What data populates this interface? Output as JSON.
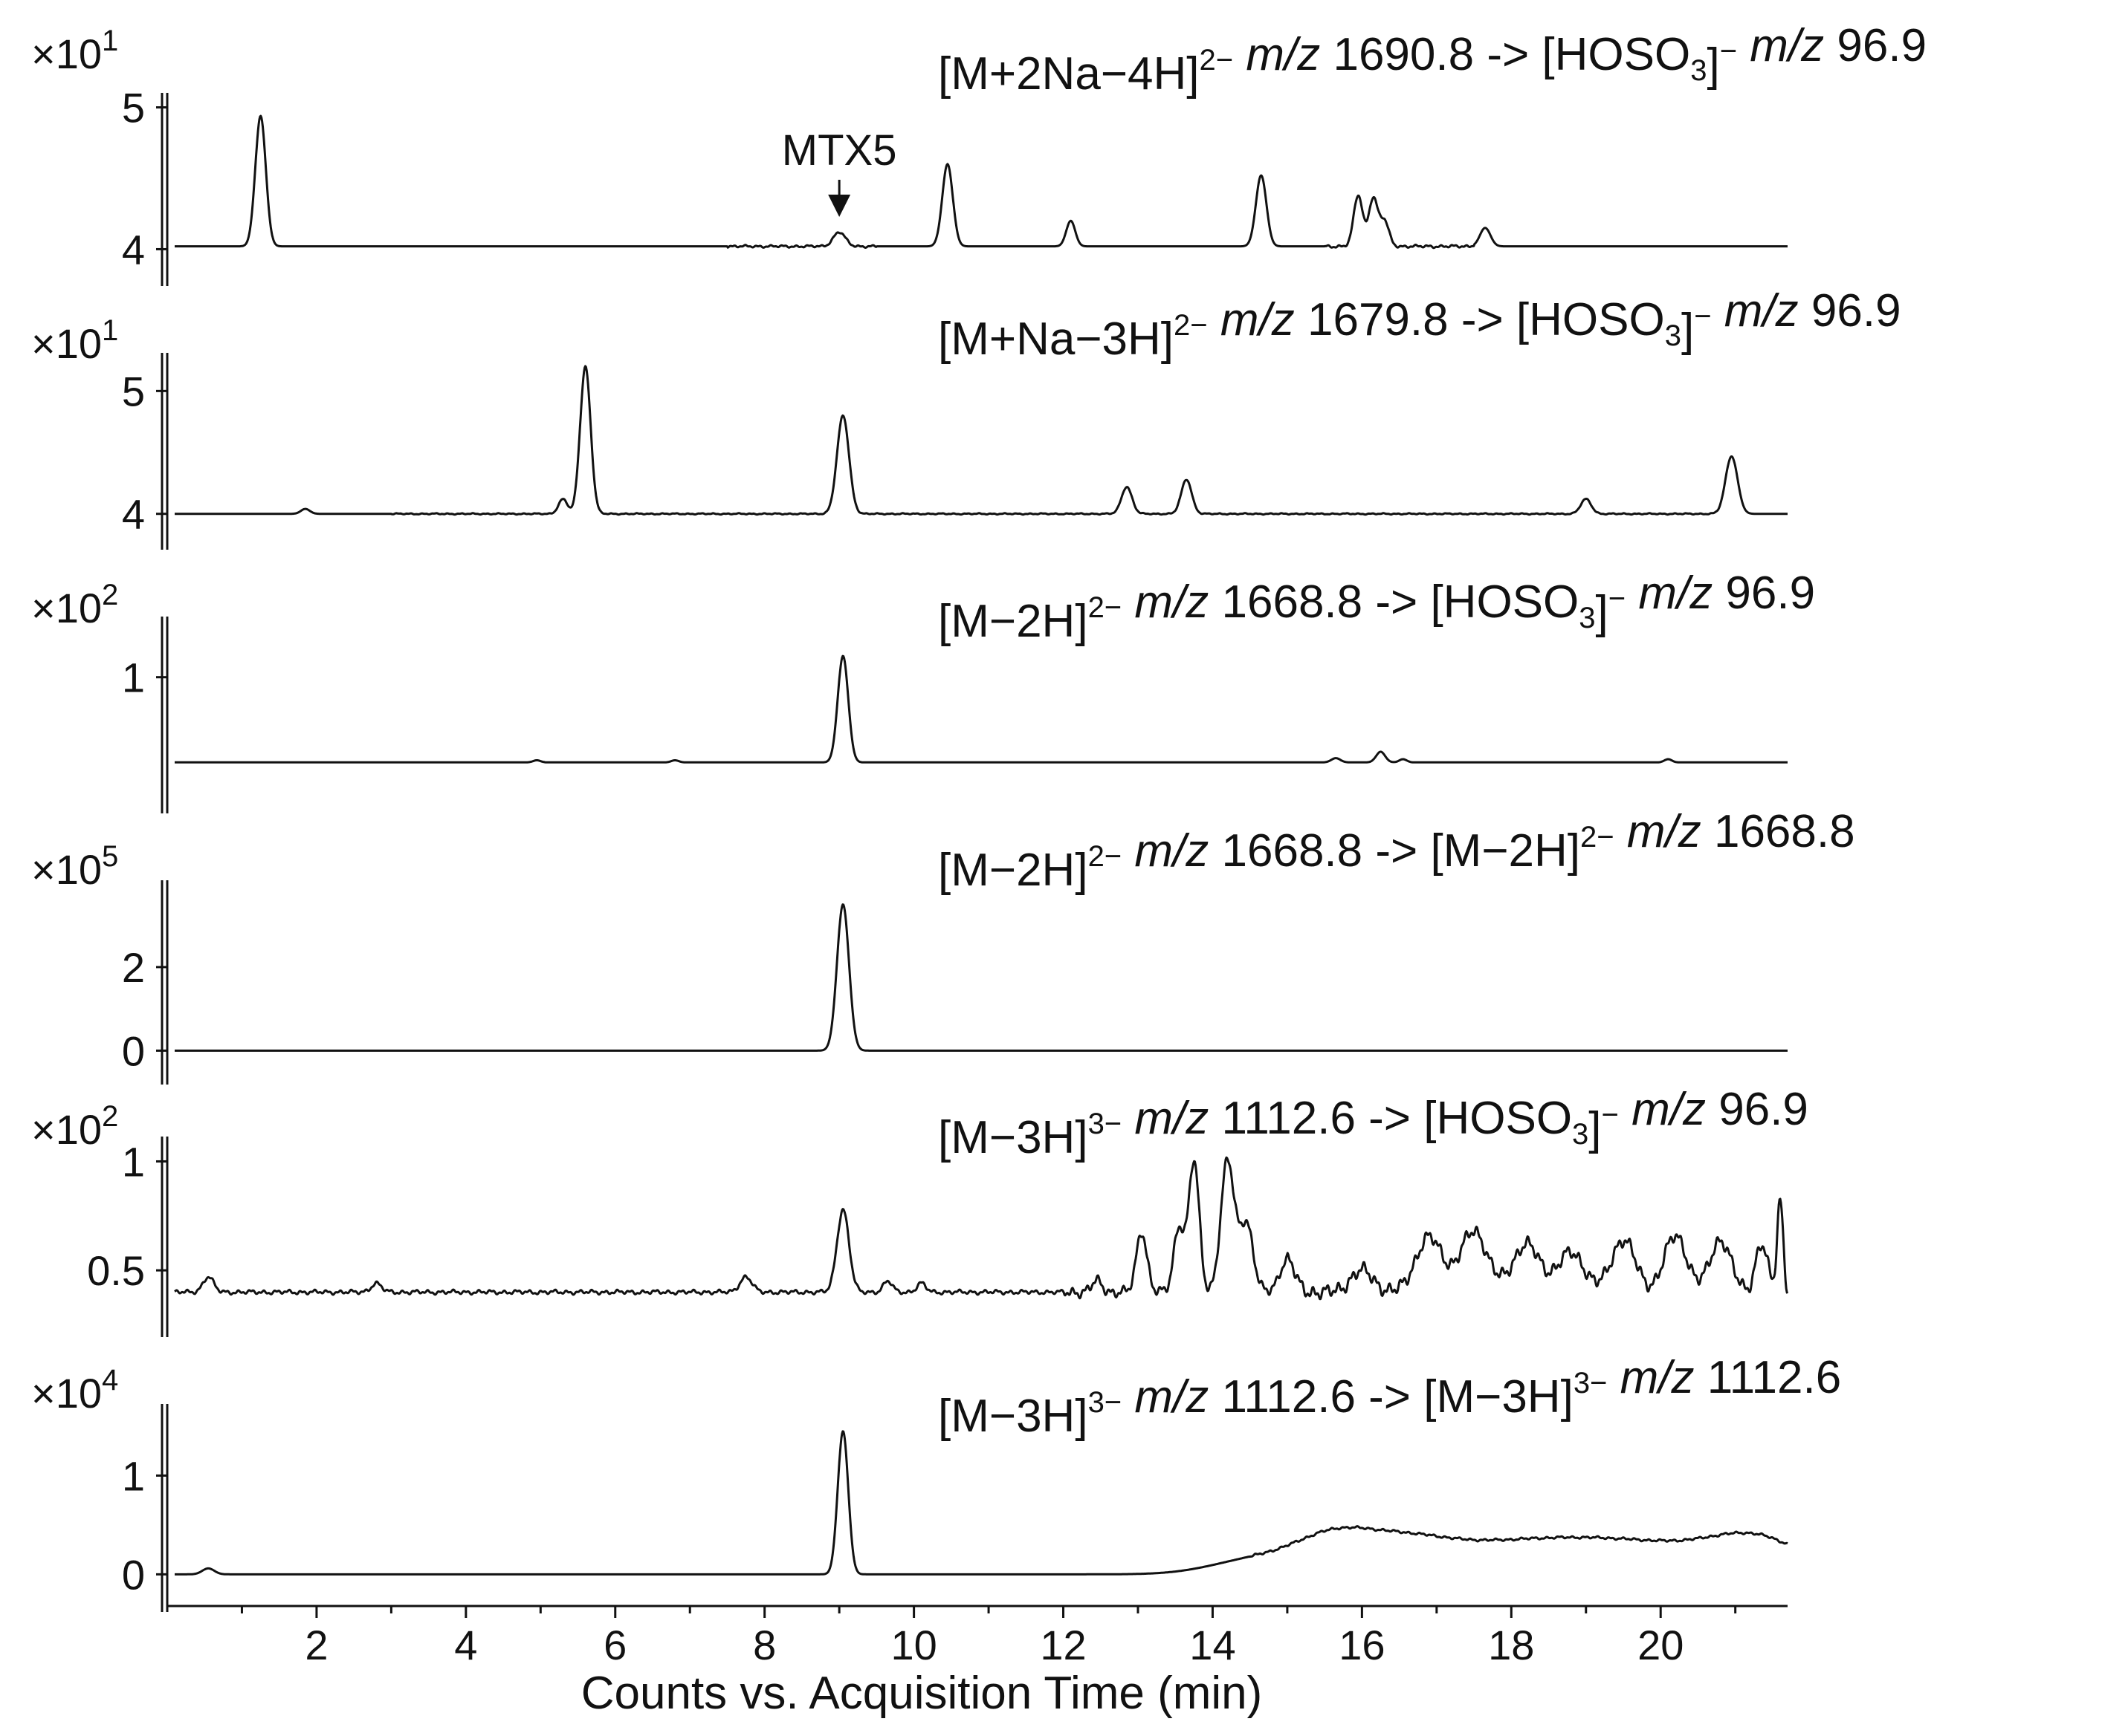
{
  "chart_data": {
    "type": "line",
    "x_axis": {
      "title": "Counts vs. Acquisition Time (min)",
      "range": [
        0,
        21.7
      ],
      "major_ticks": [
        2,
        4,
        6,
        8,
        10,
        12,
        14,
        16,
        18,
        20
      ],
      "minor_ticks": [
        1,
        3,
        5,
        7,
        9,
        11,
        13,
        15,
        17,
        19,
        21
      ]
    },
    "annotation": {
      "label": "MTX5",
      "panel": 0,
      "x": 9.0
    },
    "panels": [
      {
        "scale_prefix": "×10",
        "scale_exp": "1",
        "title_parts": [
          {
            "t": "[M+2Na−4H]"
          },
          {
            "t": "2−",
            "s": "sup"
          },
          {
            "t": " "
          },
          {
            "t": "m/z",
            "s": "it"
          },
          {
            "t": " 1690.8 -> [HOSO"
          },
          {
            "t": "3",
            "s": "sub"
          },
          {
            "t": "]"
          },
          {
            "t": "−",
            "s": "sup"
          },
          {
            "t": " "
          },
          {
            "t": "m/z",
            "s": "it"
          },
          {
            "t": " 96.9"
          }
        ],
        "ylim": [
          3.95,
          5.05
        ],
        "yticks": [
          {
            "v": 4,
            "label": "4"
          },
          {
            "v": 5,
            "label": "5"
          }
        ],
        "baseline": 4.02,
        "wiggle": [
          [
            7.5,
            9.5,
            0.01
          ],
          [
            15.5,
            17.5,
            0.012
          ]
        ],
        "peaks": [
          [
            1.25,
            0.92,
            0.07
          ],
          [
            9.0,
            0.1,
            0.08
          ],
          [
            10.45,
            0.58,
            0.07
          ],
          [
            12.1,
            0.18,
            0.06
          ],
          [
            14.65,
            0.5,
            0.07
          ],
          [
            15.95,
            0.36,
            0.06
          ],
          [
            16.15,
            0.34,
            0.06
          ],
          [
            16.3,
            0.18,
            0.06
          ],
          [
            17.65,
            0.13,
            0.07
          ]
        ]
      },
      {
        "scale_prefix": "×10",
        "scale_exp": "1",
        "title_parts": [
          {
            "t": "[M+Na−3H]"
          },
          {
            "t": "2−",
            "s": "sup"
          },
          {
            "t": " "
          },
          {
            "t": "m/z",
            "s": "it"
          },
          {
            "t": " 1679.8 -> [HOSO"
          },
          {
            "t": "3",
            "s": "sub"
          },
          {
            "t": "]"
          },
          {
            "t": "−",
            "s": "sup"
          },
          {
            "t": " "
          },
          {
            "t": "m/z",
            "s": "it"
          },
          {
            "t": " 96.9"
          }
        ],
        "ylim": [
          3.95,
          5.25
        ],
        "yticks": [
          {
            "v": 4,
            "label": "4"
          },
          {
            "v": 5,
            "label": "5"
          }
        ],
        "baseline": 4.0,
        "wiggle": [
          [
            3,
            21,
            0.006
          ]
        ],
        "peaks": [
          [
            1.85,
            0.04,
            0.06
          ],
          [
            5.3,
            0.12,
            0.06
          ],
          [
            5.6,
            1.2,
            0.07
          ],
          [
            9.05,
            0.8,
            0.08
          ],
          [
            12.85,
            0.22,
            0.07
          ],
          [
            13.65,
            0.28,
            0.07
          ],
          [
            19.0,
            0.12,
            0.07
          ],
          [
            20.95,
            0.47,
            0.08
          ]
        ]
      },
      {
        "scale_prefix": "×10",
        "scale_exp": "2",
        "title_parts": [
          {
            "t": "[M−2H]"
          },
          {
            "t": "2−",
            "s": "sup"
          },
          {
            "t": " "
          },
          {
            "t": "m/z",
            "s": "it"
          },
          {
            "t": " 1668.8 -> [HOSO"
          },
          {
            "t": "3",
            "s": "sub"
          },
          {
            "t": "]"
          },
          {
            "t": "−",
            "s": "sup"
          },
          {
            "t": " "
          },
          {
            "t": "m/z",
            "s": "it"
          },
          {
            "t": " 96.9"
          }
        ],
        "ylim": [
          0.0,
          1.5
        ],
        "yticks": [
          {
            "v": 1,
            "label": "1"
          }
        ],
        "baseline": 0.2,
        "wiggle": [],
        "peaks": [
          [
            4.95,
            0.02,
            0.05
          ],
          [
            6.8,
            0.02,
            0.05
          ],
          [
            9.05,
            1.0,
            0.07
          ],
          [
            15.65,
            0.04,
            0.06
          ],
          [
            16.25,
            0.1,
            0.06
          ],
          [
            16.55,
            0.03,
            0.05
          ],
          [
            20.1,
            0.03,
            0.05
          ]
        ]
      },
      {
        "scale_prefix": "×10",
        "scale_exp": "5",
        "title_parts": [
          {
            "t": "[M−2H]"
          },
          {
            "t": "2−",
            "s": "sup"
          },
          {
            "t": " "
          },
          {
            "t": "m/z",
            "s": "it"
          },
          {
            "t": " 1668.8 -> [M−2H]"
          },
          {
            "t": "2−",
            "s": "sup"
          },
          {
            "t": " "
          },
          {
            "t": "m/z",
            "s": "it"
          },
          {
            "t": " 1668.8"
          }
        ],
        "ylim": [
          -0.1,
          3.9
        ],
        "yticks": [
          {
            "v": 0,
            "label": "0"
          },
          {
            "v": 2,
            "label": "2"
          }
        ],
        "baseline": 0.0,
        "wiggle": [],
        "peaks": [
          [
            9.05,
            3.5,
            0.08
          ]
        ]
      },
      {
        "scale_prefix": "×10",
        "scale_exp": "2",
        "title_parts": [
          {
            "t": "[M−3H]"
          },
          {
            "t": "3−",
            "s": "sup"
          },
          {
            "t": " "
          },
          {
            "t": "m/z",
            "s": "it"
          },
          {
            "t": " 1112.6 -> [HOSO"
          },
          {
            "t": "3",
            "s": "sub"
          },
          {
            "t": "]"
          },
          {
            "t": "−",
            "s": "sup"
          },
          {
            "t": " "
          },
          {
            "t": "m/z",
            "s": "it"
          },
          {
            "t": " 96.9"
          }
        ],
        "ylim": [
          0.33,
          1.08
        ],
        "yticks": [
          {
            "v": 0.5,
            "label": "0.5"
          },
          {
            "v": 1,
            "label": "1"
          }
        ],
        "baseline": 0.4,
        "wiggle": [
          [
            0,
            12,
            0.012
          ],
          [
            12,
            15,
            0.03
          ],
          [
            15,
            21.7,
            0.04
          ]
        ],
        "peaks": [
          [
            0.55,
            0.07,
            0.07
          ],
          [
            2.8,
            0.04,
            0.07
          ],
          [
            7.75,
            0.07,
            0.08
          ],
          [
            9.05,
            0.38,
            0.08
          ],
          [
            9.65,
            0.05,
            0.06
          ],
          [
            10.1,
            0.04,
            0.06
          ],
          [
            12.45,
            0.05,
            0.07
          ],
          [
            13.05,
            0.28,
            0.07
          ],
          [
            13.55,
            0.3,
            0.07
          ],
          [
            13.75,
            0.6,
            0.07
          ],
          [
            14.2,
            0.6,
            0.09
          ],
          [
            14.45,
            0.32,
            0.09
          ],
          [
            15.0,
            0.15,
            0.1
          ],
          [
            16.0,
            0.1,
            0.15
          ],
          [
            16.9,
            0.25,
            0.18
          ],
          [
            17.5,
            0.28,
            0.18
          ],
          [
            18.2,
            0.22,
            0.18
          ],
          [
            18.8,
            0.18,
            0.18
          ],
          [
            19.5,
            0.24,
            0.16
          ],
          [
            20.2,
            0.26,
            0.15
          ],
          [
            20.8,
            0.24,
            0.14
          ],
          [
            21.35,
            0.22,
            0.08
          ],
          [
            21.6,
            0.42,
            0.04
          ]
        ]
      },
      {
        "scale_prefix": "×10",
        "scale_exp": "4",
        "title_parts": [
          {
            "t": "[M−3H]"
          },
          {
            "t": "3−",
            "s": "sup"
          },
          {
            "t": " "
          },
          {
            "t": "m/z",
            "s": "it"
          },
          {
            "t": " 1112.6 -> [M−3H]"
          },
          {
            "t": "3−",
            "s": "sup"
          },
          {
            "t": " "
          },
          {
            "t": "m/z",
            "s": "it"
          },
          {
            "t": " 1112.6"
          }
        ],
        "ylim": [
          -0.08,
          1.65
        ],
        "yticks": [
          {
            "v": 0,
            "label": "0"
          },
          {
            "v": 1,
            "label": "1"
          }
        ],
        "baseline": 0.0,
        "wiggle": [
          [
            14.5,
            21.7,
            0.015
          ]
        ],
        "peaks": [
          [
            0.55,
            0.06,
            0.08
          ],
          [
            9.05,
            1.45,
            0.07
          ],
          [
            14.6,
            0.15,
            0.6
          ],
          [
            15.6,
            0.3,
            0.5
          ],
          [
            16.5,
            0.22,
            0.6
          ],
          [
            17.8,
            0.26,
            1.2
          ],
          [
            19.8,
            0.27,
            1.2
          ],
          [
            21.3,
            0.28,
            0.6
          ]
        ]
      }
    ]
  }
}
